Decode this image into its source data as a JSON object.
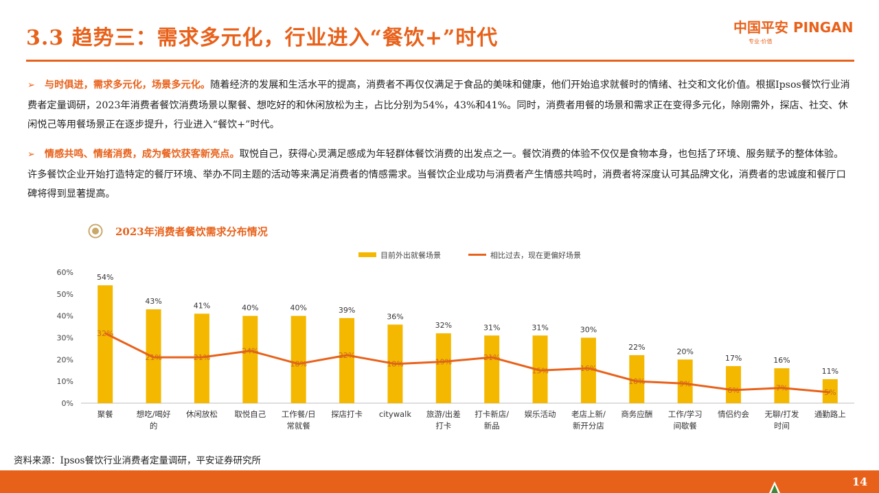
{
  "header": {
    "title": "3.3 趋势三：需求多元化，行业进入“餐饮+”时代",
    "logo_text": "中国平安 PINGAN",
    "logo_tagline": "专业·价值"
  },
  "bullets": [
    {
      "marker": "➢",
      "lead": "与时俱进，需求多元化，场景多元化。",
      "body": "随着经济的发展和生活水平的提高，消费者不再仅仅满足于食品的美味和健康，他们开始追求就餐时的情绪、社交和文化价值。根据Ipsos餐饮行业消费者定量调研，2023年消费者餐饮消费场景以聚餐、想吃好的和休闲放松为主，占比分别为54%，43%和41%。同时，消费者用餐的场景和需求正在变得多元化，除刚需外，探店、社交、休闲悦己等用餐场景正在逐步提升，行业进入“餐饮+”时代。"
    },
    {
      "marker": "➢",
      "lead": "情感共鸣、情绪消费，成为餐饮获客新亮点。",
      "body": "取悦自己，获得心灵满足感成为年轻群体餐饮消费的出发点之一。餐饮消费的体验不仅仅是食物本身，也包括了环境、服务赋予的整体体验。许多餐饮企业开始打造特定的餐厅环境、举办不同主题的活动等来满足消费者的情感需求。当餐饮企业成功与消费者产生情感共鸣时，消费者将深度认可其品牌文化，消费者的忠诚度和餐厅口碑将得到显著提高。"
    }
  ],
  "chart_title": "2023年消费者餐饮需求分布情况",
  "source": "资料来源：Ipsos餐饮行业消费者定量调研，平安证券研究所",
  "page_number": "14",
  "colors": {
    "accent": "#e8611a",
    "bar": "#f5b800",
    "line": "#e8611a"
  },
  "chart_data": {
    "type": "bar",
    "title": "2023年消费者餐饮需求分布情况",
    "categories": [
      "聚餐",
      "想吃/喝好的",
      "休闲放松",
      "取悦自己",
      "工作餐/日常就餐",
      "探店打卡",
      "citywalk",
      "旅游/出差打卡",
      "打卡新店/新品",
      "娱乐活动",
      "老店上新/新开分店",
      "商务应酬",
      "工作/学习间歇餐",
      "情侣约会",
      "无聊/打发时间",
      "通勤路上"
    ],
    "category_lines": [
      [
        "聚餐"
      ],
      [
        "想吃/喝好",
        "的"
      ],
      [
        "休闲放松"
      ],
      [
        "取悦自己"
      ],
      [
        "工作餐/日",
        "常就餐"
      ],
      [
        "探店打卡"
      ],
      [
        "citywalk"
      ],
      [
        "旅游/出差",
        "打卡"
      ],
      [
        "打卡新店/",
        "新品"
      ],
      [
        "娱乐活动"
      ],
      [
        "老店上新/",
        "新开分店"
      ],
      [
        "商务应酬"
      ],
      [
        "工作/学习",
        "间歇餐"
      ],
      [
        "情侣约会"
      ],
      [
        "无聊/打发",
        "时间"
      ],
      [
        "通勤路上"
      ]
    ],
    "series": [
      {
        "name": "目前外出就餐场景",
        "type": "bar",
        "values": [
          54,
          43,
          41,
          40,
          40,
          39,
          36,
          32,
          31,
          31,
          30,
          22,
          20,
          17,
          16,
          11
        ]
      },
      {
        "name": "相比过去，现在更偏好场景",
        "type": "line",
        "values": [
          32,
          21,
          21,
          24,
          18,
          22,
          18,
          19,
          21,
          15,
          16,
          10,
          9,
          6,
          7,
          5
        ]
      }
    ],
    "yticks": [
      "0%",
      "10%",
      "20%",
      "30%",
      "40%",
      "50%",
      "60%"
    ],
    "ylim": [
      0,
      60
    ],
    "unit": "%",
    "legend_position": "top-center"
  }
}
